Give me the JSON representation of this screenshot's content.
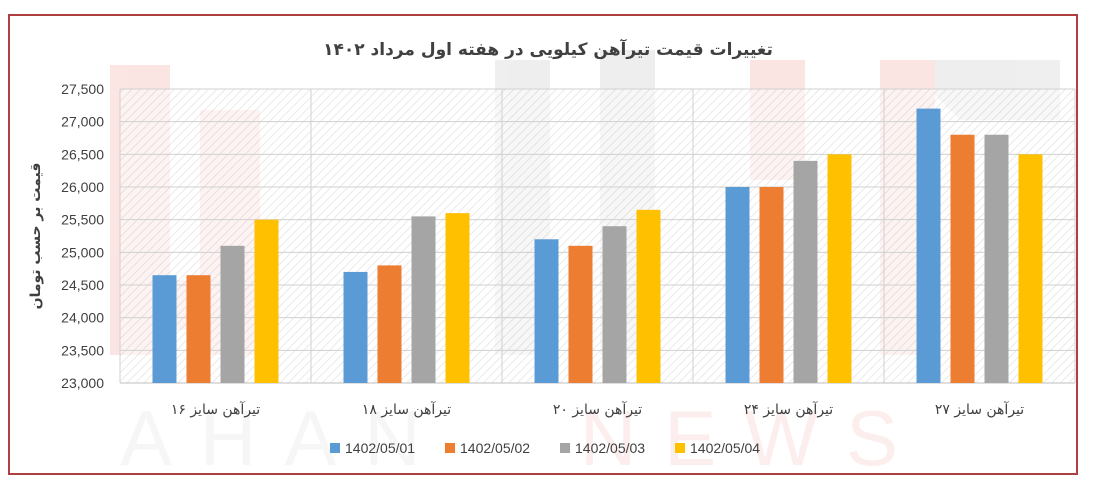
{
  "chart_data": {
    "type": "bar",
    "title": "تغییرات قیمت تیرآهن کیلویی در هفته اول مرداد ۱۴۰۲",
    "ylabel": "قیمت بر حسب تومان",
    "xlabel": "",
    "categories": [
      "تیرآهن سایز ۱۶",
      "تیرآهن سایز ۱۸",
      "تیرآهن سایز ۲۰",
      "تیرآهن سایز ۲۴",
      "تیرآهن سایز ۲۷"
    ],
    "series": [
      {
        "name": "1402/05/01",
        "color": "#5b9bd5",
        "values": [
          24650,
          24700,
          25200,
          26000,
          27200
        ]
      },
      {
        "name": "1402/05/02",
        "color": "#ed7d31",
        "values": [
          24650,
          24800,
          25100,
          26000,
          26800
        ]
      },
      {
        "name": "1402/05/03",
        "color": "#a5a5a5",
        "values": [
          25100,
          25550,
          25400,
          26400,
          26800
        ]
      },
      {
        "name": "1402/05/04",
        "color": "#ffc000",
        "values": [
          25500,
          25600,
          25650,
          26500,
          26500
        ]
      }
    ],
    "ylim": [
      23000,
      27500
    ],
    "yticks": [
      "23,000",
      "23,500",
      "24,000",
      "24,500",
      "25,000",
      "25,500",
      "26,000",
      "26,500",
      "27,000",
      "27,500"
    ],
    "grid": true,
    "legend": "bottom"
  },
  "watermark": {
    "lines": [
      "AHAN",
      "NEWS"
    ]
  }
}
